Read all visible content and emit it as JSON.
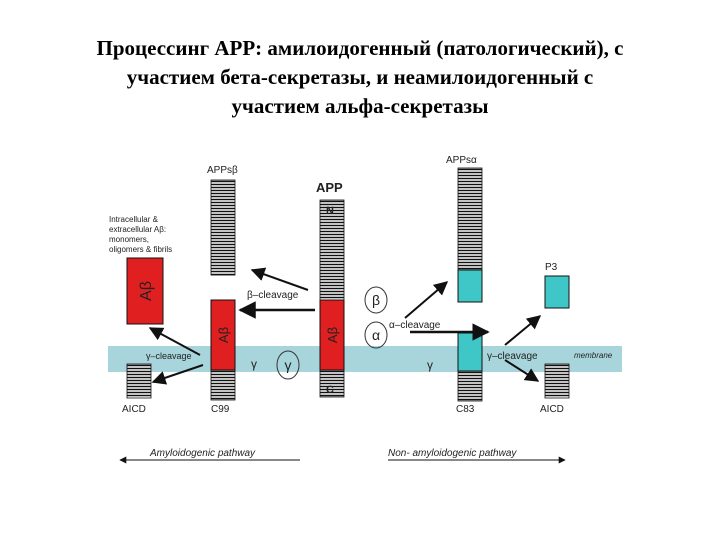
{
  "title": {
    "line1": "Процессинг APP: амилоидогенный (патологический), с",
    "line2": "участием бета-секретазы, и неамилоидогенный с",
    "line3": "участием альфа-секретазы"
  },
  "diagram": {
    "app_label": "APP",
    "n_label": "N",
    "c_label": "C",
    "apps_beta": "APPsβ",
    "apps_alpha": "APPsα",
    "p3": "P3",
    "abeta": "Aβ",
    "beta_cleavage": "β–cleavage",
    "alpha_cleavage": "α–cleavage",
    "gamma_cleavage": "γ–cleavage",
    "beta": "β",
    "alpha": "α",
    "gamma": "γ",
    "membrane": "membrane",
    "aicd": "AICD",
    "c99": "C99",
    "c83": "C83",
    "abeta_note": [
      "Intracellular &",
      "extracellular Aβ:",
      "monomers,",
      "oligomers & fibrils"
    ],
    "amyloidogenic": "Amyloidogenic pathway",
    "non_amyloidogenic": "Non- amyloidogenic pathway"
  },
  "colors": {
    "membrane": "#a8d5dc",
    "abeta": "#e02020",
    "p3": "#3fc6c6",
    "stripe": "#111111"
  }
}
